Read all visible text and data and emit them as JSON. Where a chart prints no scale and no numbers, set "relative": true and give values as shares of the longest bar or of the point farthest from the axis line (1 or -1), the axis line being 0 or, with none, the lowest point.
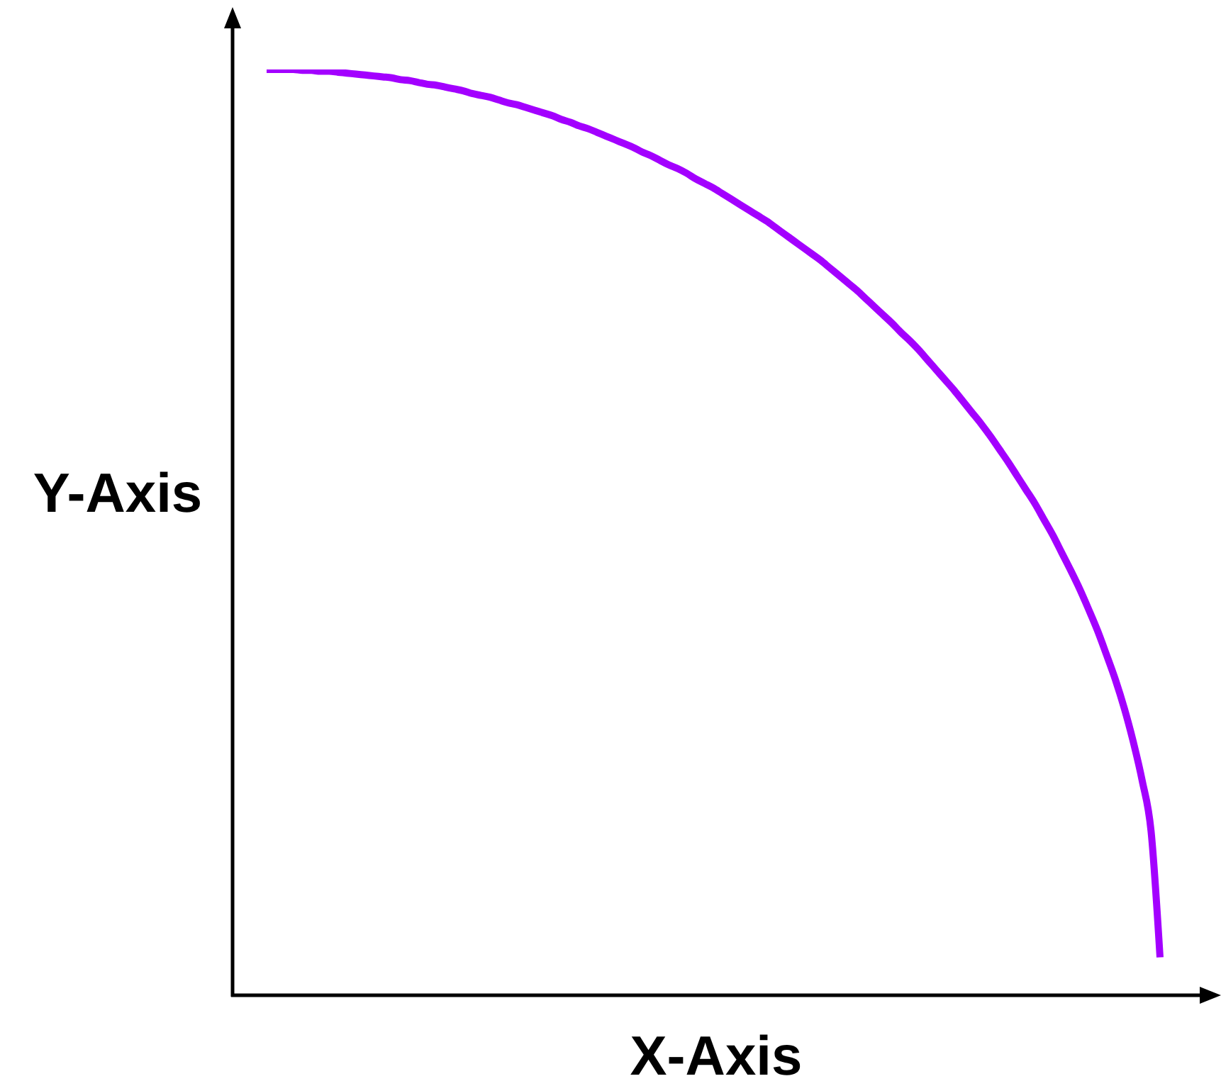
{
  "chart_data": {
    "type": "line",
    "xlabel": "X-Axis",
    "ylabel": "Y-Axis",
    "relative": true,
    "categories": [
      null,
      null,
      null,
      null,
      null,
      null,
      null,
      null,
      null,
      null,
      null,
      null,
      null,
      null,
      null,
      null,
      null,
      null,
      null,
      null,
      null,
      null,
      null,
      null,
      null,
      null,
      null,
      null,
      null,
      null,
      null,
      null,
      null,
      null,
      null,
      null,
      null,
      null,
      null,
      null,
      null,
      null,
      null,
      null,
      null,
      null,
      null,
      null,
      null,
      null,
      null,
      null,
      null,
      null,
      null,
      null,
      null,
      null,
      null,
      null,
      null,
      null,
      null,
      null,
      null,
      null,
      null,
      null,
      null,
      null,
      null,
      null,
      null,
      null,
      null,
      null,
      null,
      null,
      null,
      null,
      null,
      null,
      null,
      null,
      null,
      null,
      null,
      null,
      null,
      null,
      null,
      null,
      null,
      null,
      null,
      null,
      null,
      null,
      null,
      null,
      null
    ],
    "series": [
      {
        "color": "#a300ff",
        "values": [
          1,
          1,
          1,
          1,
          0.999,
          0.999,
          0.998,
          0.998,
          0.997,
          0.996,
          0.995,
          0.994,
          0.993,
          0.992,
          0.991,
          0.989,
          0.988,
          0.986,
          0.984,
          0.983,
          0.981,
          0.979,
          0.977,
          0.974,
          0.972,
          0.97,
          0.967,
          0.964,
          0.962,
          0.959,
          0.956,
          0.953,
          0.95,
          0.946,
          0.943,
          0.939,
          0.936,
          0.932,
          0.928,
          0.924,
          0.92,
          0.916,
          0.911,
          0.907,
          0.902,
          0.897,
          0.893,
          0.888,
          0.882,
          0.877,
          0.872,
          0.866,
          0.86,
          0.854,
          0.848,
          0.842,
          0.836,
          0.829,
          0.822,
          0.815,
          0.808,
          0.801,
          0.794,
          0.786,
          0.778,
          0.77,
          0.762,
          0.753,
          0.744,
          0.735,
          0.726,
          0.716,
          0.707,
          0.697,
          0.686,
          0.675,
          0.664,
          0.653,
          0.641,
          0.629,
          0.617,
          0.604,
          0.59,
          0.576,
          0.561,
          0.546,
          0.531,
          0.514,
          0.497,
          0.478,
          0.459,
          0.439,
          0.417,
          0.394,
          0.368,
          0.341,
          0.31,
          0.274,
          0.232,
          0.177,
          0.041
        ]
      }
    ]
  }
}
